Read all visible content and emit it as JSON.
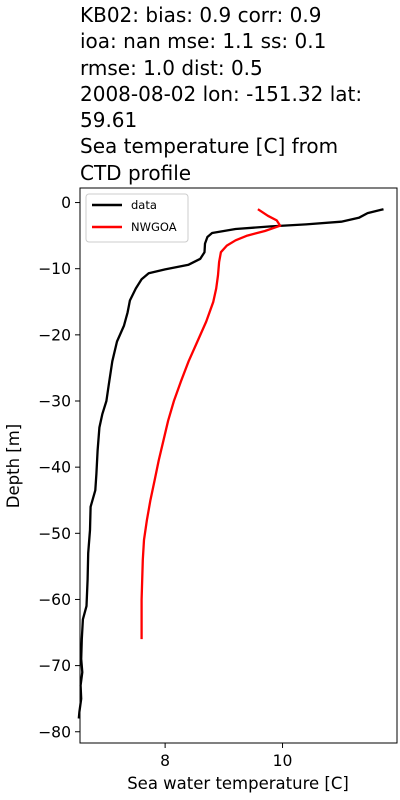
{
  "chart_data": {
    "type": "line",
    "title_lines": [
      "KB02: bias: 0.9  corr: 0.9",
      "ioa: nan  mse: 1.1  ss: 0.1",
      "rmse: 1.0  dist: 0.5",
      "2008-08-02 lon: -151.32 lat:",
      "59.61",
      "Sea temperature [C] from",
      "CTD profile"
    ],
    "xlabel": "Sea water temperature [C]",
    "ylabel": "Depth [m]",
    "xlim": [
      6.55,
      11.95
    ],
    "ylim": [
      -81.7,
      2.2
    ],
    "xticks": [
      8,
      10
    ],
    "yticks": [
      0,
      -10,
      -20,
      -30,
      -40,
      -50,
      -60,
      -70,
      -80
    ],
    "legend_position": "upper left",
    "grid": false,
    "series": [
      {
        "name": "data",
        "color": "#000000",
        "points": [
          [
            11.72,
            -1.0
          ],
          [
            11.45,
            -1.6
          ],
          [
            11.3,
            -2.3
          ],
          [
            11.0,
            -2.9
          ],
          [
            10.4,
            -3.3
          ],
          [
            9.8,
            -3.6
          ],
          [
            9.2,
            -4.0
          ],
          [
            8.8,
            -4.6
          ],
          [
            8.72,
            -5.2
          ],
          [
            8.68,
            -6.2
          ],
          [
            8.67,
            -7.5
          ],
          [
            8.6,
            -8.5
          ],
          [
            8.4,
            -9.4
          ],
          [
            8.0,
            -10.1
          ],
          [
            7.72,
            -10.7
          ],
          [
            7.6,
            -11.6
          ],
          [
            7.5,
            -13.0
          ],
          [
            7.4,
            -14.8
          ],
          [
            7.36,
            -16.6
          ],
          [
            7.3,
            -18.6
          ],
          [
            7.18,
            -21.0
          ],
          [
            7.1,
            -24.0
          ],
          [
            7.04,
            -27.5
          ],
          [
            7.0,
            -30.0
          ],
          [
            6.93,
            -32.0
          ],
          [
            6.88,
            -34.0
          ],
          [
            6.85,
            -37.5
          ],
          [
            6.83,
            -41.0
          ],
          [
            6.81,
            -43.5
          ],
          [
            6.73,
            -46.0
          ],
          [
            6.72,
            -49.5
          ],
          [
            6.69,
            -53.0
          ],
          [
            6.68,
            -57.0
          ],
          [
            6.66,
            -61.0
          ],
          [
            6.6,
            -63.0
          ],
          [
            6.58,
            -66.0
          ],
          [
            6.57,
            -69.0
          ],
          [
            6.59,
            -71.0
          ],
          [
            6.56,
            -73.0
          ],
          [
            6.57,
            -75.0
          ],
          [
            6.54,
            -77.0
          ],
          [
            6.53,
            -78.0
          ]
        ]
      },
      {
        "name": "NWGOA",
        "color": "#ff0000",
        "points": [
          [
            9.58,
            -1.0
          ],
          [
            9.75,
            -2.0
          ],
          [
            9.9,
            -2.7
          ],
          [
            9.96,
            -3.5
          ],
          [
            9.7,
            -4.3
          ],
          [
            9.4,
            -5.0
          ],
          [
            9.2,
            -5.7
          ],
          [
            9.05,
            -6.5
          ],
          [
            8.95,
            -7.5
          ],
          [
            8.92,
            -9.0
          ],
          [
            8.9,
            -11.0
          ],
          [
            8.87,
            -13.0
          ],
          [
            8.82,
            -15.0
          ],
          [
            8.7,
            -18.0
          ],
          [
            8.55,
            -21.0
          ],
          [
            8.4,
            -24.0
          ],
          [
            8.27,
            -27.0
          ],
          [
            8.15,
            -30.0
          ],
          [
            8.05,
            -33.0
          ],
          [
            7.97,
            -36.0
          ],
          [
            7.89,
            -39.0
          ],
          [
            7.82,
            -42.0
          ],
          [
            7.75,
            -45.0
          ],
          [
            7.69,
            -48.0
          ],
          [
            7.64,
            -51.0
          ],
          [
            7.62,
            -54.0
          ],
          [
            7.61,
            -57.0
          ],
          [
            7.6,
            -60.0
          ],
          [
            7.6,
            -63.0
          ],
          [
            7.6,
            -66.0
          ]
        ]
      }
    ]
  }
}
